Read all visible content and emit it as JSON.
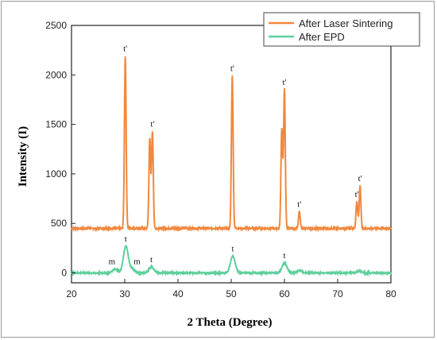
{
  "chart_data": {
    "type": "line",
    "xlabel": "2 Theta (Degree)",
    "ylabel": "Intensity (I)",
    "xlim": [
      20,
      80
    ],
    "ylim": [
      -100,
      2500
    ],
    "xticks": [
      20,
      30,
      40,
      50,
      60,
      70,
      80
    ],
    "yticks": [
      0,
      500,
      1000,
      1500,
      2000,
      2500
    ],
    "legend_position": "top-right",
    "series": [
      {
        "name": "After Laser Sintering",
        "color": "#f0883e",
        "baseline": 450,
        "peaks": [
          {
            "x": 30.1,
            "y": 2190
          },
          {
            "x": 34.7,
            "y": 1350
          },
          {
            "x": 35.2,
            "y": 1430
          },
          {
            "x": 50.2,
            "y": 1990
          },
          {
            "x": 59.5,
            "y": 1450
          },
          {
            "x": 60.0,
            "y": 1850
          },
          {
            "x": 62.8,
            "y": 620
          },
          {
            "x": 73.6,
            "y": 720
          },
          {
            "x": 74.2,
            "y": 880
          }
        ]
      },
      {
        "name": "After EPD",
        "color": "#5fcf9c",
        "baseline": 0,
        "peaks": [
          {
            "x": 28.2,
            "y": 40
          },
          {
            "x": 30.2,
            "y": 270
          },
          {
            "x": 31.4,
            "y": 40
          },
          {
            "x": 35.0,
            "y": 60
          },
          {
            "x": 50.3,
            "y": 170
          },
          {
            "x": 60.0,
            "y": 100
          },
          {
            "x": 62.8,
            "y": 25
          },
          {
            "x": 74.0,
            "y": 20
          }
        ]
      }
    ],
    "annotations": [
      {
        "text": "t'",
        "x": 30.1,
        "y": 2190
      },
      {
        "text": "t'",
        "x": 35.2,
        "y": 1430
      },
      {
        "text": "t'",
        "x": 50.2,
        "y": 1990
      },
      {
        "text": "t'",
        "x": 60.0,
        "y": 1850
      },
      {
        "text": "t'",
        "x": 62.8,
        "y": 620
      },
      {
        "text": "t'",
        "x": 73.6,
        "y": 720
      },
      {
        "text": "t'",
        "x": 74.2,
        "y": 880
      },
      {
        "text": "m",
        "x": 28.2,
        "y": 40
      },
      {
        "text": "t",
        "x": 30.2,
        "y": 270
      },
      {
        "text": "m",
        "x": 31.4,
        "y": 40
      },
      {
        "text": "t",
        "x": 35.0,
        "y": 60
      },
      {
        "text": "t",
        "x": 50.3,
        "y": 170
      },
      {
        "text": "t",
        "x": 60.0,
        "y": 100
      }
    ]
  }
}
